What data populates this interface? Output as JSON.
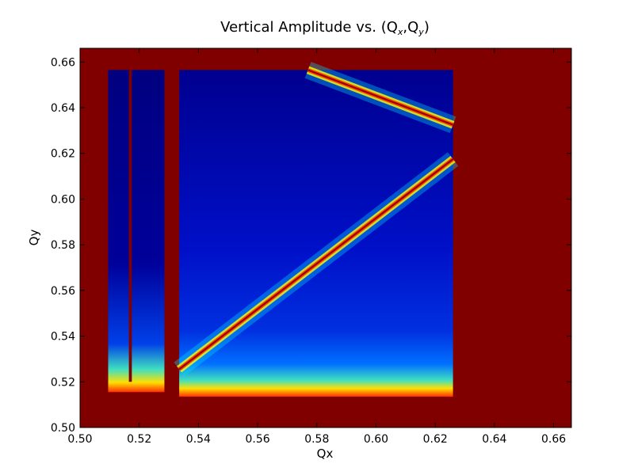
{
  "chart_data": {
    "type": "heatmap",
    "title": "Vertical Amplitude vs. (Q",
    "title_sub_x": "x",
    "title_sub_y": "y",
    "title_sep": ",Q",
    "title_close": ")",
    "xlabel": "Qx",
    "ylabel": "Qy",
    "xlim": [
      0.5,
      0.666
    ],
    "ylim": [
      0.5,
      0.666
    ],
    "xticks": [
      0.5,
      0.52,
      0.54,
      0.56,
      0.58,
      0.6,
      0.62,
      0.64,
      0.66
    ],
    "yticks": [
      0.5,
      0.52,
      0.54,
      0.56,
      0.58,
      0.6,
      0.62,
      0.64,
      0.66
    ],
    "xtick_labels": [
      "0.50",
      "0.52",
      "0.54",
      "0.56",
      "0.58",
      "0.60",
      "0.62",
      "0.64",
      "0.66"
    ],
    "ytick_labels": [
      "0.50",
      "0.52",
      "0.54",
      "0.56",
      "0.58",
      "0.60",
      "0.62",
      "0.64",
      "0.66"
    ],
    "colormap": "jet",
    "background_color": "#800000",
    "grid": false,
    "regions": [
      {
        "name": "stable-region-left",
        "x": [
          0.5095,
          0.5285
        ],
        "y": [
          0.5155,
          0.6565
        ]
      },
      {
        "name": "stable-region-main",
        "x": [
          0.5335,
          0.626
        ],
        "y": [
          0.5135,
          0.6565
        ]
      }
    ],
    "unstable_strips": [
      {
        "name": "left-vertical-line",
        "x": [
          0.5165,
          0.5175
        ],
        "y": [
          0.52,
          0.6565
        ]
      }
    ],
    "resonance_lines": [
      {
        "name": "main-diagonal-resonance",
        "points": [
          [
            0.5335,
            0.5255
          ],
          [
            0.626,
            0.6175
          ]
        ]
      },
      {
        "name": "top-right-resonance",
        "points": [
          [
            0.577,
            0.6565
          ],
          [
            0.626,
            0.6325
          ]
        ]
      }
    ]
  }
}
